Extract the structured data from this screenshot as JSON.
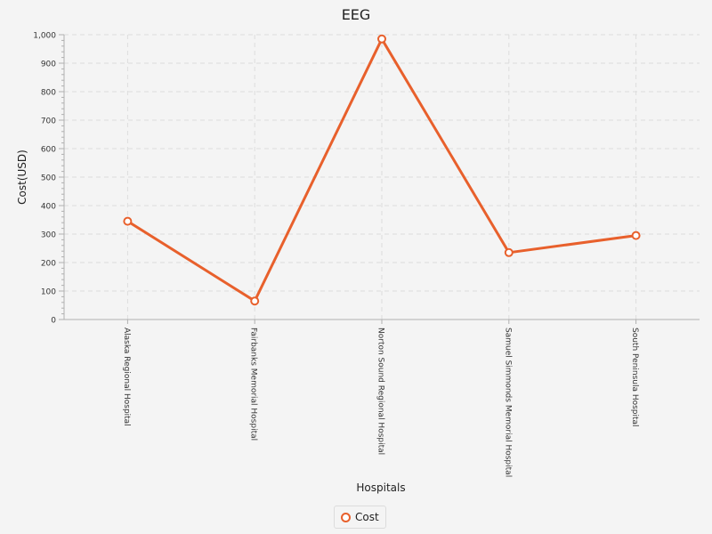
{
  "chart_data": {
    "type": "line",
    "title": "EEG",
    "xlabel": "Hospitals",
    "ylabel": "Cost(USD)",
    "categories": [
      "Alaska Regional Hospital",
      "Fairbanks Memorial Hospital",
      "Norton Sound Regional Hospital",
      "Samuel Simmonds Memorial Hospital",
      "South Peninsula Hospital"
    ],
    "series": [
      {
        "name": "Cost",
        "values": [
          345,
          65,
          985,
          235,
          295
        ]
      }
    ],
    "ylim": [
      0,
      1000
    ],
    "yticks": [
      0,
      100,
      200,
      300,
      400,
      500,
      600,
      700,
      800,
      900,
      1000
    ],
    "ytick_labels": [
      "0",
      "100",
      "200",
      "300",
      "400",
      "500",
      "600",
      "700",
      "800",
      "900",
      "1,000"
    ],
    "grid": true,
    "legend_position": "bottom-center",
    "colors": {
      "series": "#e8602c",
      "grid": "#dddddd",
      "axis": "#b0b0b0"
    }
  }
}
